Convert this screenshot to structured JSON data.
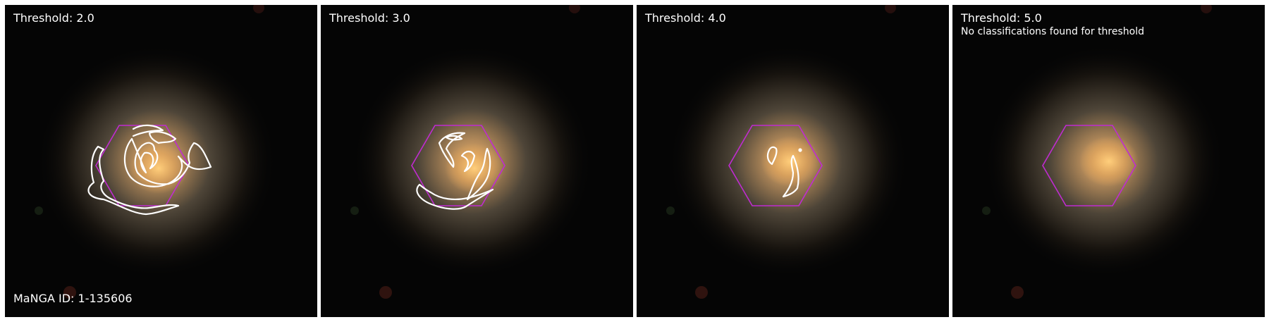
{
  "panels": [
    {
      "threshold_label": "Threshold: 2.0",
      "note": "",
      "id_label": "MaNGA ID: 1-135606"
    },
    {
      "threshold_label": "Threshold: 3.0",
      "note": "",
      "id_label": ""
    },
    {
      "threshold_label": "Threshold: 4.0",
      "note": "",
      "id_label": ""
    },
    {
      "threshold_label": "Threshold: 5.0",
      "note": "No classifications found for threshold",
      "id_label": ""
    }
  ],
  "colors": {
    "background": "#ffffff",
    "sky": "#050505",
    "hexagon": "#c02bd1",
    "contour": "#ffffff",
    "label": "#ffffff"
  }
}
